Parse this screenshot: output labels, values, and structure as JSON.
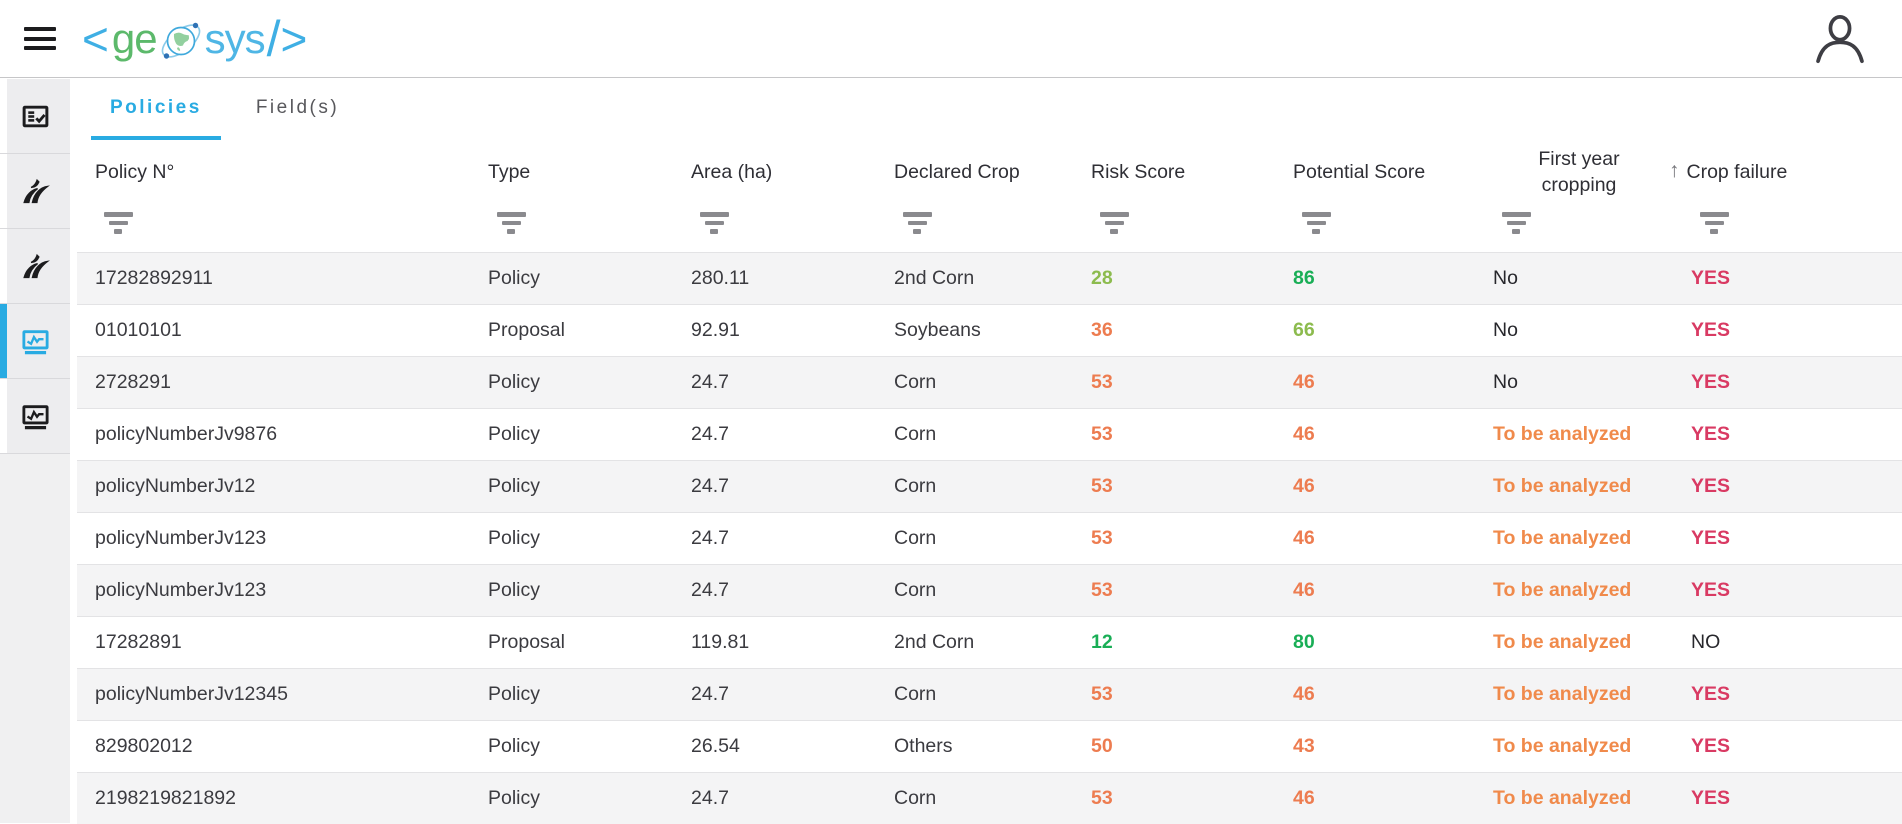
{
  "topbar": {
    "logo": {
      "open_bracket": "<",
      "ge": "ge",
      "sys": "sys",
      "slash": "/",
      "close_bracket": ">"
    },
    "icons": [
      "hamburger-menu-icon",
      "user-profile-icon"
    ]
  },
  "sidebar": {
    "items": [
      {
        "icon": "checklist-icon",
        "active": false
      },
      {
        "icon": "crop-plant-icon",
        "active": false
      },
      {
        "icon": "crop-plant-icon",
        "active": false
      },
      {
        "icon": "monitor-chart-icon",
        "active": true
      },
      {
        "icon": "monitor-chart-icon",
        "active": false
      }
    ]
  },
  "tabs": [
    {
      "label": "Policies",
      "active": true
    },
    {
      "label": "Field(s)",
      "active": false
    }
  ],
  "table": {
    "columns": [
      {
        "label": "Policy N°"
      },
      {
        "label": "Type"
      },
      {
        "label": "Area (ha)"
      },
      {
        "label": "Declared Crop"
      },
      {
        "label": "Risk Score"
      },
      {
        "label": "Potential Score"
      },
      {
        "label": "First year cropping"
      },
      {
        "label": "Crop failure",
        "sorted": "ascending"
      }
    ],
    "rows": [
      {
        "policy_no": "17282892911",
        "type": "Policy",
        "area": "280.11",
        "declared_crop": "2nd Corn",
        "risk_score": {
          "value": "28",
          "color": "light-green"
        },
        "potential_score": {
          "value": "86",
          "color": "green"
        },
        "first_year_cropping": {
          "value": "No",
          "color": "plain"
        },
        "crop_failure": {
          "value": "YES",
          "color": "yes"
        }
      },
      {
        "policy_no": "01010101",
        "type": "Proposal",
        "area": "92.91",
        "declared_crop": "Soybeans",
        "risk_score": {
          "value": "36",
          "color": "orange"
        },
        "potential_score": {
          "value": "66",
          "color": "light-green"
        },
        "first_year_cropping": {
          "value": "No",
          "color": "plain"
        },
        "crop_failure": {
          "value": "YES",
          "color": "yes"
        }
      },
      {
        "policy_no": "2728291",
        "type": "Policy",
        "area": "24.7",
        "declared_crop": "Corn",
        "risk_score": {
          "value": "53",
          "color": "orange"
        },
        "potential_score": {
          "value": "46",
          "color": "orange"
        },
        "first_year_cropping": {
          "value": "No",
          "color": "plain"
        },
        "crop_failure": {
          "value": "YES",
          "color": "yes"
        }
      },
      {
        "policy_no": "policyNumberJv9876",
        "type": "Policy",
        "area": "24.7",
        "declared_crop": "Corn",
        "risk_score": {
          "value": "53",
          "color": "orange"
        },
        "potential_score": {
          "value": "46",
          "color": "orange"
        },
        "first_year_cropping": {
          "value": "To be analyzed",
          "color": "analyze"
        },
        "crop_failure": {
          "value": "YES",
          "color": "yes"
        }
      },
      {
        "policy_no": "policyNumberJv12",
        "type": "Policy",
        "area": "24.7",
        "declared_crop": "Corn",
        "risk_score": {
          "value": "53",
          "color": "orange"
        },
        "potential_score": {
          "value": "46",
          "color": "orange"
        },
        "first_year_cropping": {
          "value": "To be analyzed",
          "color": "analyze"
        },
        "crop_failure": {
          "value": "YES",
          "color": "yes"
        }
      },
      {
        "policy_no": "policyNumberJv123",
        "type": "Policy",
        "area": "24.7",
        "declared_crop": "Corn",
        "risk_score": {
          "value": "53",
          "color": "orange"
        },
        "potential_score": {
          "value": "46",
          "color": "orange"
        },
        "first_year_cropping": {
          "value": "To be analyzed",
          "color": "analyze"
        },
        "crop_failure": {
          "value": "YES",
          "color": "yes"
        }
      },
      {
        "policy_no": "policyNumberJv123",
        "type": "Policy",
        "area": "24.7",
        "declared_crop": "Corn",
        "risk_score": {
          "value": "53",
          "color": "orange"
        },
        "potential_score": {
          "value": "46",
          "color": "orange"
        },
        "first_year_cropping": {
          "value": "To be analyzed",
          "color": "analyze"
        },
        "crop_failure": {
          "value": "YES",
          "color": "yes"
        }
      },
      {
        "policy_no": "17282891",
        "type": "Proposal",
        "area": "119.81",
        "declared_crop": "2nd Corn",
        "risk_score": {
          "value": "12",
          "color": "green"
        },
        "potential_score": {
          "value": "80",
          "color": "green"
        },
        "first_year_cropping": {
          "value": "To be analyzed",
          "color": "analyze"
        },
        "crop_failure": {
          "value": "NO",
          "color": "plain"
        }
      },
      {
        "policy_no": "policyNumberJv12345",
        "type": "Policy",
        "area": "24.7",
        "declared_crop": "Corn",
        "risk_score": {
          "value": "53",
          "color": "orange"
        },
        "potential_score": {
          "value": "46",
          "color": "orange"
        },
        "first_year_cropping": {
          "value": "To be analyzed",
          "color": "analyze"
        },
        "crop_failure": {
          "value": "YES",
          "color": "yes"
        }
      },
      {
        "policy_no": "829802012",
        "type": "Policy",
        "area": "26.54",
        "declared_crop": "Others",
        "risk_score": {
          "value": "50",
          "color": "orange"
        },
        "potential_score": {
          "value": "43",
          "color": "orange"
        },
        "first_year_cropping": {
          "value": "To be analyzed",
          "color": "analyze"
        },
        "crop_failure": {
          "value": "YES",
          "color": "yes"
        }
      },
      {
        "policy_no": "2198219821892",
        "type": "Policy",
        "area": "24.7",
        "declared_crop": "Corn",
        "risk_score": {
          "value": "53",
          "color": "orange"
        },
        "potential_score": {
          "value": "46",
          "color": "orange"
        },
        "first_year_cropping": {
          "value": "To be analyzed",
          "color": "analyze"
        },
        "crop_failure": {
          "value": "YES",
          "color": "yes"
        }
      }
    ]
  },
  "colors": {
    "accent": "#29abe2",
    "logo_green": "#5cb96b",
    "logo_blue": "#3fafe4",
    "score_good": "#19ae56",
    "score_medium": "#8cbb4e",
    "score_bad": "#ed7c50",
    "crop_failure_yes": "#d93a63",
    "to_be_analyzed": "#f08a4b"
  }
}
